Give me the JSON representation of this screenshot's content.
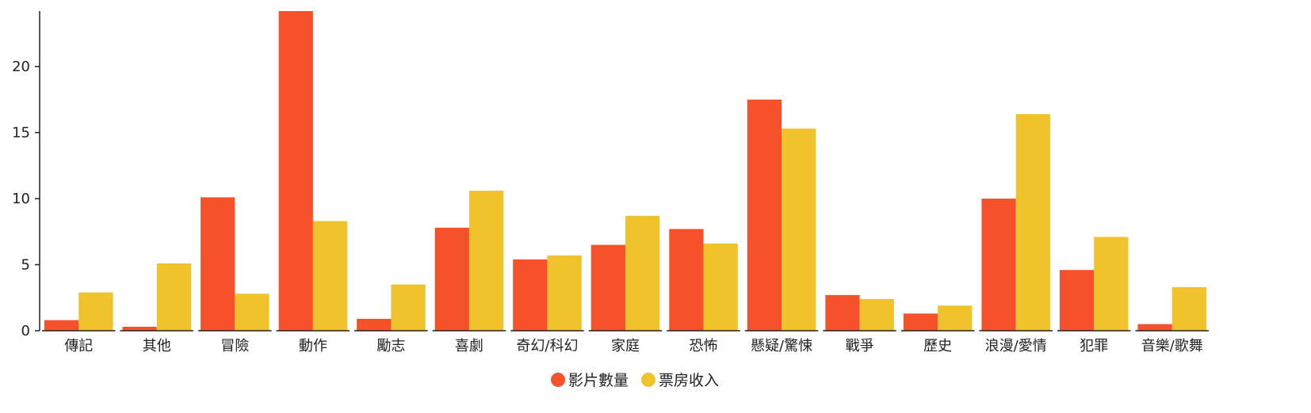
{
  "chart_data": {
    "type": "bar",
    "categories": [
      "傳記",
      "其他",
      "冒險",
      "動作",
      "勵志",
      "喜劇",
      "奇幻/科幻",
      "家庭",
      "恐怖",
      "懸疑/驚悚",
      "戰爭",
      "歷史",
      "浪漫/愛情",
      "犯罪",
      "音樂/歌舞"
    ],
    "series": [
      {
        "name": "影片數量",
        "color": "#f5522c",
        "values": [
          0.8,
          0.3,
          10.1,
          24.2,
          0.9,
          7.8,
          5.4,
          6.5,
          7.7,
          17.5,
          2.7,
          1.3,
          10.0,
          4.6,
          0.5
        ]
      },
      {
        "name": "票房收入",
        "color": "#f0c22c",
        "values": [
          2.9,
          5.1,
          2.8,
          8.3,
          3.5,
          10.6,
          5.7,
          8.7,
          6.6,
          15.3,
          2.4,
          1.9,
          16.4,
          7.1,
          3.3
        ]
      }
    ],
    "y_ticks": [
      0,
      5,
      10,
      15,
      20
    ],
    "ylim": [
      0,
      24.2
    ],
    "grid": false,
    "legend_position": "bottom-center"
  }
}
